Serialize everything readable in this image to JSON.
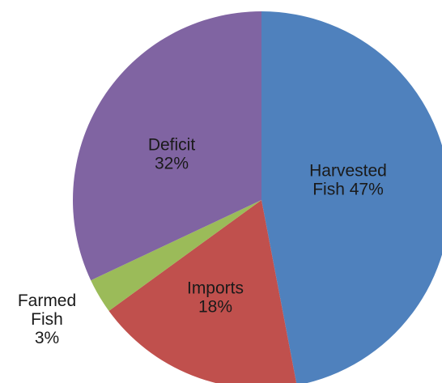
{
  "chart_data": {
    "type": "pie",
    "title": "",
    "slices": [
      {
        "label": "Harvested Fish",
        "value": 47,
        "color": "#4f81bd",
        "label_lines": [
          "Harvested",
          "Fish 47%"
        ]
      },
      {
        "label": "Imports",
        "value": 18,
        "color": "#c0504d",
        "label_lines": [
          "Imports",
          "18%"
        ]
      },
      {
        "label": "Farmed Fish",
        "value": 3,
        "color": "#9bbb59",
        "label_lines": [
          "Farmed",
          "Fish",
          "3%"
        ]
      },
      {
        "label": "Deficit",
        "value": 32,
        "color": "#8064a2",
        "label_lines": [
          "Deficit",
          "32%"
        ]
      }
    ],
    "start_angle": "12 o'clock",
    "direction": "clockwise",
    "legend": "none"
  }
}
